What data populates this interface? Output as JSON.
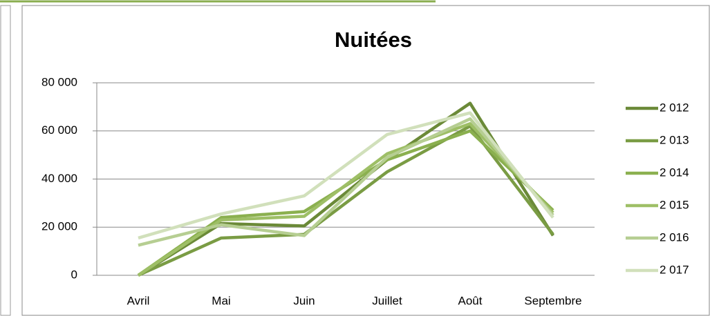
{
  "chart_data": {
    "type": "line",
    "title": "Nuitées",
    "categories": [
      "Avril",
      "Mai",
      "Juin",
      "Juillet",
      "Août",
      "Septembre"
    ],
    "series": [
      {
        "name": "2 012",
        "color": "#6b8a38",
        "values": [
          0,
          21500,
          20500,
          48000,
          71500,
          16500
        ]
      },
      {
        "name": "2 013",
        "color": "#7a9c44",
        "values": [
          0,
          15500,
          17000,
          43000,
          62000,
          17000
        ]
      },
      {
        "name": "2 014",
        "color": "#8bb04f",
        "values": [
          0,
          24000,
          26500,
          48000,
          60000,
          27000
        ]
      },
      {
        "name": "2 015",
        "color": "#9ebf66",
        "values": [
          0,
          23000,
          24500,
          50500,
          63000,
          26000
        ]
      },
      {
        "name": "2 016",
        "color": "#b6ce92",
        "values": [
          12500,
          21000,
          16500,
          49000,
          65000,
          25000
        ]
      },
      {
        "name": "2 017",
        "color": "#d1e0bb",
        "values": [
          15500,
          25500,
          33000,
          58500,
          67500,
          24000
        ]
      }
    ],
    "ylim": [
      0,
      80000
    ],
    "yticks": [
      0,
      {
        "value": 20000,
        "label": "20 000"
      },
      {
        "value": 40000,
        "label": "40 000"
      },
      {
        "value": 60000,
        "label": "60 000"
      },
      {
        "value": 80000,
        "label": "80 000"
      }
    ],
    "grid": true,
    "legend": "right"
  }
}
